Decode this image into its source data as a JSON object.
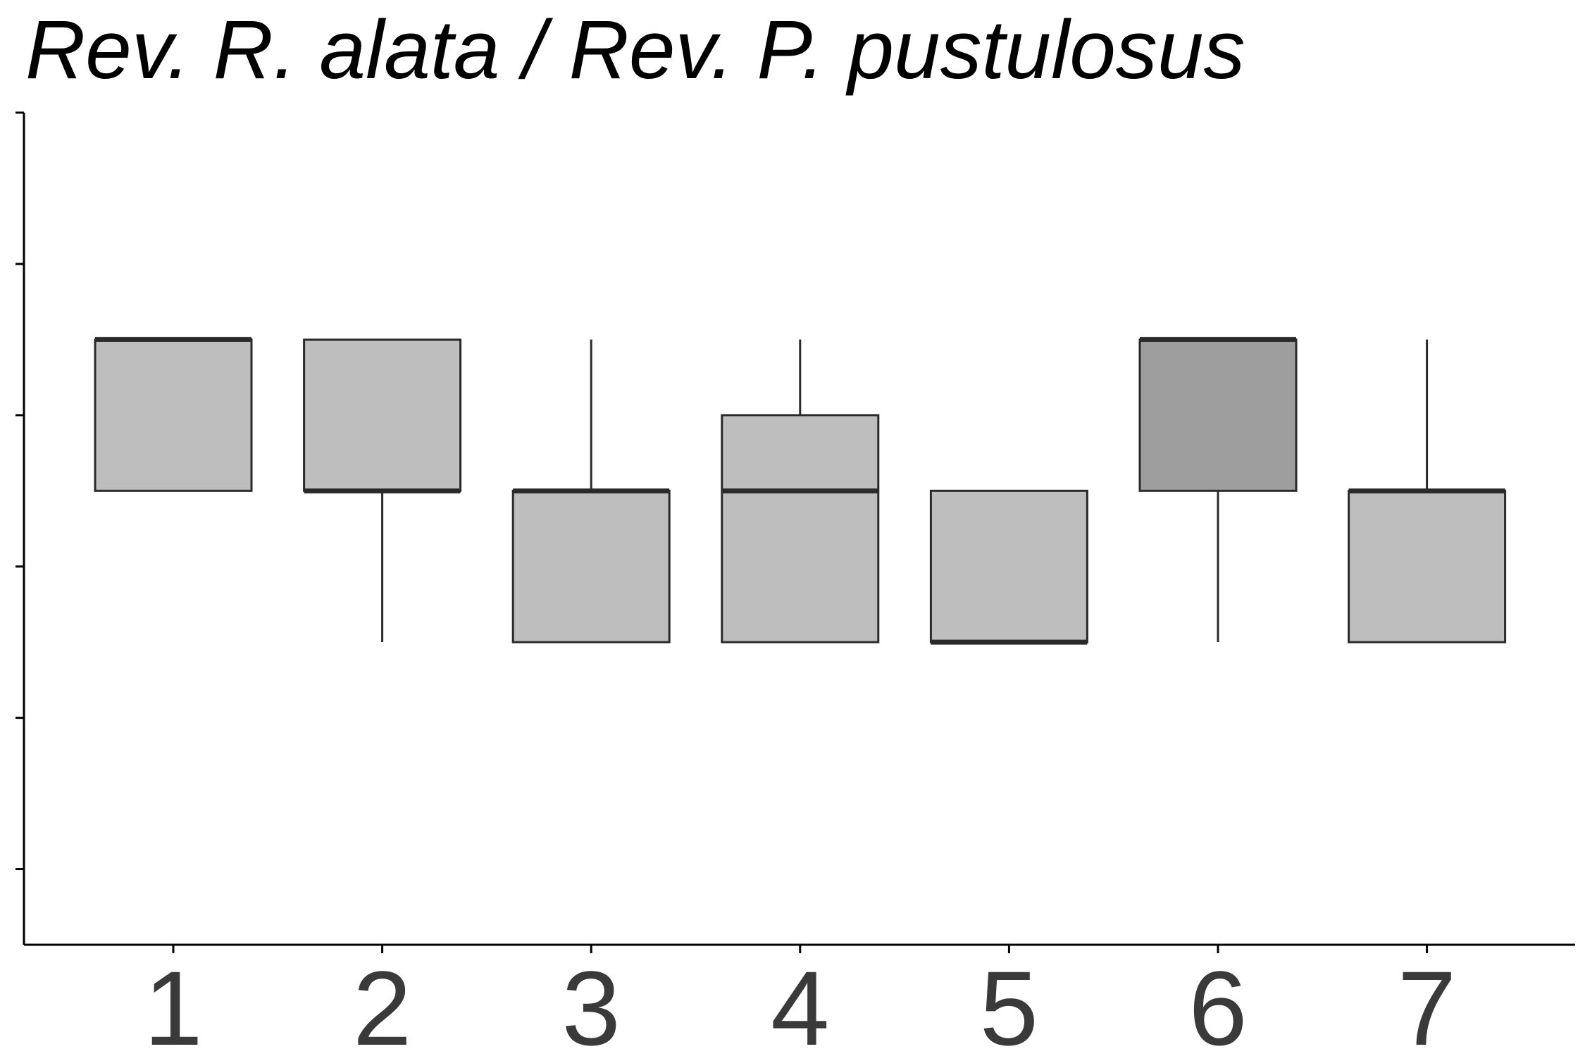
{
  "chart_data": {
    "type": "boxplot",
    "title": "Rev. R. alata / Rev. P. pustulosus",
    "xlabel": "",
    "ylabel": "",
    "categories": [
      "1",
      "2",
      "3",
      "4",
      "5",
      "6",
      "7"
    ],
    "ylim": [
      0,
      5.5
    ],
    "y_ticks": [
      0.5,
      1.5,
      2.5,
      3.5,
      4.5,
      5.5
    ],
    "y_tick_labels_shown": false,
    "grid": false,
    "boxes": [
      {
        "category": "1",
        "whisker_low": 3,
        "q1": 3,
        "median": 4,
        "q3": 4,
        "whisker_high": 4,
        "fill": "#bebebe"
      },
      {
        "category": "2",
        "whisker_low": 2,
        "q1": 3,
        "median": 3,
        "q3": 4,
        "whisker_high": 4,
        "fill": "#bebebe"
      },
      {
        "category": "3",
        "whisker_low": 2,
        "q1": 2,
        "median": 3,
        "q3": 3,
        "whisker_high": 4,
        "fill": "#bebebe"
      },
      {
        "category": "4",
        "whisker_low": 2,
        "q1": 2,
        "median": 3,
        "q3": 3.5,
        "whisker_high": 4,
        "fill": "#bebebe"
      },
      {
        "category": "5",
        "whisker_low": 2,
        "q1": 2,
        "median": 2,
        "q3": 3,
        "whisker_high": 3,
        "fill": "#bebebe"
      },
      {
        "category": "6",
        "whisker_low": 2,
        "q1": 3,
        "median": 4,
        "q3": 4,
        "whisker_high": 4,
        "fill": "#9e9e9e"
      },
      {
        "category": "7",
        "whisker_low": 2,
        "q1": 2,
        "median": 3,
        "q3": 3,
        "whisker_high": 4,
        "fill": "#bebebe"
      }
    ],
    "colors": {
      "box_outline": "#2a2a2a",
      "axis": "#000000",
      "tick_label": "#3a3a3a"
    }
  }
}
